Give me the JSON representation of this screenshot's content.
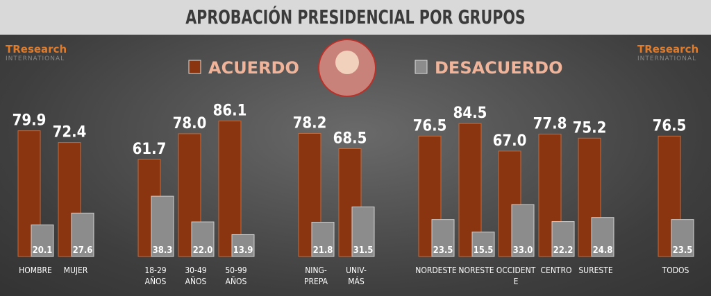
{
  "chart_data": {
    "type": "bar",
    "title": "APROBACIÓN PRESIDENCIAL POR GRUPOS",
    "logo": [
      "TResearch",
      "INTERNATIONAL"
    ],
    "categories": [
      "HOMBRE",
      "MUJER",
      "18-29 AÑOS",
      "30-49 AÑOS",
      "50-99 AÑOS",
      "NING-PREPA",
      "UNIV-MÁS",
      "NORDESTE",
      "NORESTE",
      "OCCIDENTE",
      "CENTRO",
      "SURESTE",
      "TODOS"
    ],
    "series": [
      {
        "name": "ACUERDO",
        "color": "#8b3510",
        "values": [
          79.9,
          72.4,
          61.7,
          78.0,
          86.1,
          78.2,
          68.5,
          76.5,
          84.5,
          67.0,
          77.8,
          75.2,
          76.5
        ],
        "value_labels": [
          "79.9",
          "72.4",
          "61.7",
          "78.0",
          "86.1",
          "78.2",
          "68.5",
          "76.5",
          "84.5",
          "67.0",
          "77.8",
          "75.2",
          "76.5"
        ]
      },
      {
        "name": "DESACUERDO",
        "color": "#8c8c8c",
        "values": [
          20.1,
          27.6,
          38.3,
          22.0,
          13.9,
          21.8,
          31.5,
          23.5,
          15.5,
          33.0,
          22.2,
          24.8,
          23.5
        ],
        "value_labels": [
          "20.1",
          "27.6",
          "38.3",
          "22.0",
          "13.9",
          "21.8",
          "31.5",
          "23.5",
          "15.5",
          "33.0",
          "22.2",
          "24.8",
          "23.5"
        ]
      }
    ]
  }
}
